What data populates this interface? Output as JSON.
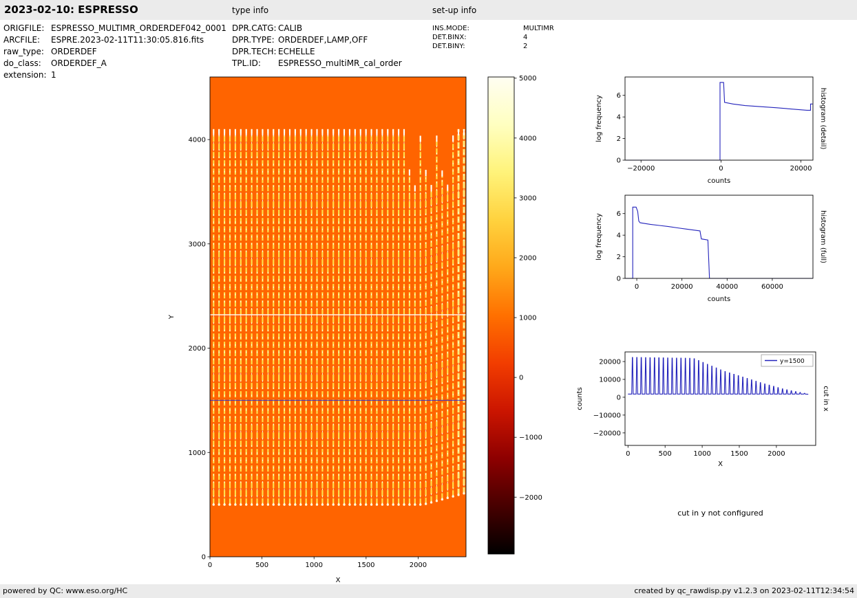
{
  "header": {
    "title": "2023-02-10: ESPRESSO",
    "type_info_label": "type info",
    "setup_info_label": "set-up info"
  },
  "file_info": {
    "rows": [
      {
        "key": "origfile",
        "label": "ORIGFILE:",
        "value": "ESPRESSO_MULTIMR_ORDERDEF042_0001"
      },
      {
        "key": "arcfile",
        "label": "ARCFILE:",
        "value": "ESPRE.2023-02-11T11:30:05.816.fits"
      },
      {
        "key": "raw-type",
        "label": "raw_type:",
        "value": "ORDERDEF"
      },
      {
        "key": "do-class",
        "label": "do_class:",
        "value": "ORDERDEF_A"
      },
      {
        "key": "extension",
        "label": "extension:",
        "value": "1"
      }
    ]
  },
  "type_info": {
    "rows": [
      {
        "key": "dpr-catg",
        "label": "DPR.CATG:",
        "value": "CALIB"
      },
      {
        "key": "dpr-type",
        "label": "DPR.TYPE:",
        "value": "ORDERDEF,LAMP,OFF"
      },
      {
        "key": "dpr-tech",
        "label": "DPR.TECH:",
        "value": "ECHELLE"
      },
      {
        "key": "tpl-id",
        "label": "TPL.ID:",
        "value": "ESPRESSO_multiMR_cal_order"
      }
    ]
  },
  "setup_info": {
    "rows": [
      {
        "key": "ins-mode",
        "label": "INS.MODE:",
        "value": "MULTIMR"
      },
      {
        "key": "det-binx",
        "label": "DET.BINX:",
        "value": "4"
      },
      {
        "key": "det-biny",
        "label": "DET.BINY:",
        "value": "2"
      }
    ]
  },
  "cut_y_note": "cut in y not configured",
  "footer": {
    "left": "powered by QC: www.eso.org/HC",
    "right": "created by qc_rawdisp.py v1.2.3 on 2023-02-11T12:34:54"
  },
  "chart_data": [
    {
      "id": "raw_frame",
      "type": "heatmap",
      "xlabel": "X",
      "ylabel": "Y",
      "xlim": [
        0,
        2460
      ],
      "ylim": [
        0,
        4600
      ],
      "xticks": [
        0,
        500,
        1000,
        1500,
        2000
      ],
      "yticks": [
        0,
        1000,
        2000,
        3000,
        4000
      ],
      "background_color": "#ff6400",
      "stripe_color": "#ffdf4d",
      "stripe_core_color": "#ffffff",
      "orders": {
        "count": 47,
        "x_start": 35,
        "x_end": 2440,
        "y_bottom": 500,
        "y_top": 4100
      },
      "bright_row_y": 2320,
      "cut_line": {
        "y": 1500,
        "color": "#3333cc"
      },
      "colorbar": {
        "ticks": [
          5000,
          4000,
          3000,
          2000,
          1000,
          0,
          -1000,
          -2000
        ],
        "vmin": -2950,
        "vmax": 5020,
        "stops": [
          {
            "offset": 0,
            "color": "#fffef2"
          },
          {
            "offset": 0.1,
            "color": "#ffffc0"
          },
          {
            "offset": 0.2,
            "color": "#fff37a"
          },
          {
            "offset": 0.3,
            "color": "#ffd23e"
          },
          {
            "offset": 0.4,
            "color": "#ffa81a"
          },
          {
            "offset": 0.5,
            "color": "#ff7000"
          },
          {
            "offset": 0.6,
            "color": "#f23d00"
          },
          {
            "offset": 0.7,
            "color": "#cb1500"
          },
          {
            "offset": 0.8,
            "color": "#8d0000"
          },
          {
            "offset": 0.9,
            "color": "#470000"
          },
          {
            "offset": 1,
            "color": "#000000"
          }
        ]
      }
    },
    {
      "id": "histogram_detail",
      "type": "line",
      "xlabel": "counts",
      "ylabel": "log frequency",
      "side_label": "histogram (detail)",
      "xlim": [
        -24000,
        23000
      ],
      "ylim": [
        0,
        7.7
      ],
      "xticks": [
        -20000,
        0,
        20000
      ],
      "yticks": [
        0,
        2,
        4,
        6
      ],
      "line_color": "#2222bb",
      "points": [
        [
          -23800,
          0
        ],
        [
          -250,
          0
        ],
        [
          -250,
          7.2
        ],
        [
          650,
          7.2
        ],
        [
          900,
          5.35
        ],
        [
          3000,
          5.2
        ],
        [
          6000,
          5.05
        ],
        [
          10000,
          4.95
        ],
        [
          14000,
          4.85
        ],
        [
          18000,
          4.72
        ],
        [
          21500,
          4.62
        ],
        [
          22400,
          4.62
        ],
        [
          22400,
          5.2
        ],
        [
          22900,
          5.2
        ]
      ]
    },
    {
      "id": "histogram_full",
      "type": "line",
      "xlabel": "counts",
      "ylabel": "log frequency",
      "side_label": "histogram (full)",
      "xlim": [
        -5200,
        78000
      ],
      "ylim": [
        0,
        7.7
      ],
      "xticks": [
        0,
        20000,
        40000,
        60000
      ],
      "yticks": [
        0,
        2,
        4,
        6
      ],
      "line_color": "#2222bb",
      "points": [
        [
          -5000,
          0
        ],
        [
          -1800,
          0
        ],
        [
          -1800,
          6.6
        ],
        [
          -300,
          6.6
        ],
        [
          400,
          6.2
        ],
        [
          900,
          5.3
        ],
        [
          1500,
          5.15
        ],
        [
          6000,
          5.0
        ],
        [
          10000,
          4.9
        ],
        [
          14000,
          4.8
        ],
        [
          18000,
          4.68
        ],
        [
          22000,
          4.56
        ],
        [
          26000,
          4.45
        ],
        [
          28000,
          4.4
        ],
        [
          28600,
          3.65
        ],
        [
          31500,
          3.55
        ],
        [
          32200,
          0
        ],
        [
          77800,
          0
        ]
      ]
    },
    {
      "id": "cut_in_x",
      "type": "line",
      "xlabel": "X",
      "ylabel": "counts",
      "side_label": "cut in x",
      "legend": [
        {
          "label": "y=1500",
          "color": "#2222bb"
        }
      ],
      "xlim": [
        -40,
        2530
      ],
      "ylim": [
        -27000,
        25400
      ],
      "xticks": [
        0,
        500,
        1000,
        1500,
        2000
      ],
      "yticks": [
        -20000,
        -10000,
        0,
        10000,
        20000
      ],
      "line_color": "#2222bb",
      "comb": {
        "n_spikes": 40,
        "x_first": 60,
        "x_last": 2380,
        "baseline": 1800,
        "half_width": 10,
        "envelope": [
          [
            60,
            22300
          ],
          [
            880,
            21800
          ],
          [
            1300,
            14500
          ],
          [
            1800,
            8000
          ],
          [
            2100,
            4500
          ],
          [
            2380,
            2200
          ]
        ]
      }
    }
  ]
}
